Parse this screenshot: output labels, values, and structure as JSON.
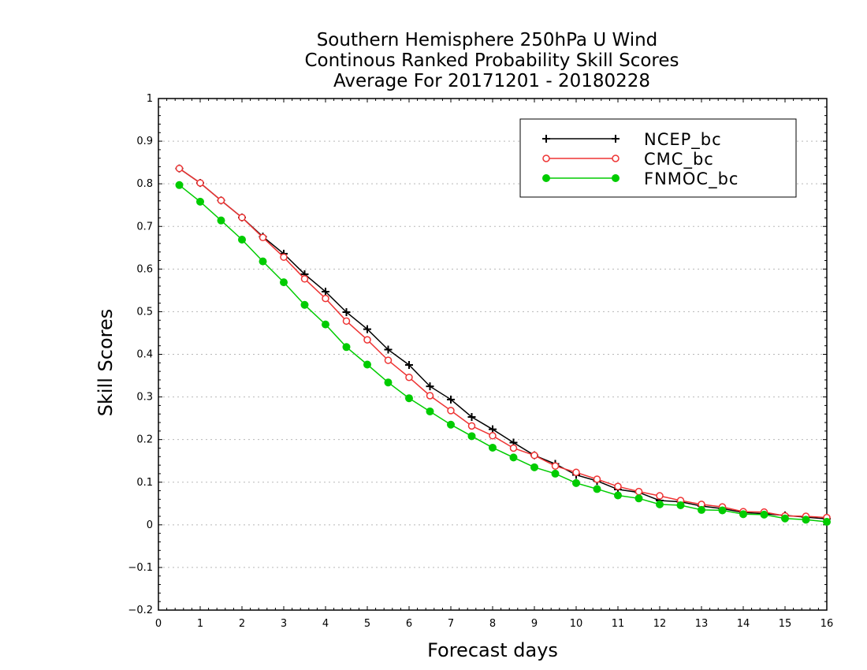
{
  "chart_data": {
    "type": "line",
    "title": [
      "Southern Hemisphere 250hPa U Wind",
      "Continous Ranked Probability Skill Scores",
      "Average For 20171201 - 20180228"
    ],
    "xlabel": "Forecast days",
    "ylabel": "Skill Scores",
    "xlim": [
      0,
      16
    ],
    "ylim": [
      -0.2,
      1
    ],
    "xticks": [
      "0",
      "1",
      "2",
      "3",
      "4",
      "5",
      "6",
      "7",
      "8",
      "9",
      "10",
      "11",
      "12",
      "13",
      "14",
      "15",
      "16"
    ],
    "yticks": [
      "−0.2",
      "−0.1",
      "0",
      "0.1",
      "0.2",
      "0.3",
      "0.4",
      "0.5",
      "0.6",
      "0.7",
      "0.8",
      "0.9",
      "1"
    ],
    "grid": "horizontal dotted",
    "legend_position": "top-right",
    "x": [
      0.5,
      1,
      1.5,
      2,
      2.5,
      3,
      3.5,
      4,
      4.5,
      5,
      5.5,
      6,
      6.5,
      7,
      7.5,
      8,
      8.5,
      9,
      9.5,
      10,
      10.5,
      11,
      11.5,
      12,
      12.5,
      13,
      13.5,
      14,
      14.5,
      15,
      15.5,
      16
    ],
    "series": [
      {
        "name": "NCEP_bc",
        "color": "#000000",
        "marker": "plus",
        "values": [
          0.836,
          0.802,
          0.761,
          0.721,
          0.676,
          0.636,
          0.588,
          0.547,
          0.499,
          0.459,
          0.411,
          0.375,
          0.325,
          0.294,
          0.253,
          0.224,
          0.193,
          0.163,
          0.143,
          0.117,
          0.103,
          0.083,
          0.076,
          0.057,
          0.054,
          0.044,
          0.038,
          0.029,
          0.026,
          0.022,
          0.018,
          0.014
        ]
      },
      {
        "name": "CMC_bc",
        "color": "#ee3333",
        "marker": "open-circle",
        "values": [
          0.836,
          0.802,
          0.761,
          0.721,
          0.674,
          0.628,
          0.577,
          0.531,
          0.478,
          0.434,
          0.386,
          0.346,
          0.303,
          0.268,
          0.232,
          0.209,
          0.18,
          0.163,
          0.138,
          0.123,
          0.107,
          0.09,
          0.078,
          0.068,
          0.057,
          0.048,
          0.042,
          0.031,
          0.03,
          0.021,
          0.02,
          0.017
        ]
      },
      {
        "name": "FNMOC_bc",
        "color": "#00cc00",
        "marker": "filled-circle",
        "values": [
          0.797,
          0.758,
          0.714,
          0.669,
          0.618,
          0.569,
          0.516,
          0.47,
          0.417,
          0.376,
          0.334,
          0.297,
          0.266,
          0.235,
          0.208,
          0.181,
          0.158,
          0.135,
          0.12,
          0.098,
          0.084,
          0.069,
          0.062,
          0.048,
          0.046,
          0.035,
          0.034,
          0.025,
          0.024,
          0.015,
          0.012,
          0.007
        ]
      }
    ]
  }
}
